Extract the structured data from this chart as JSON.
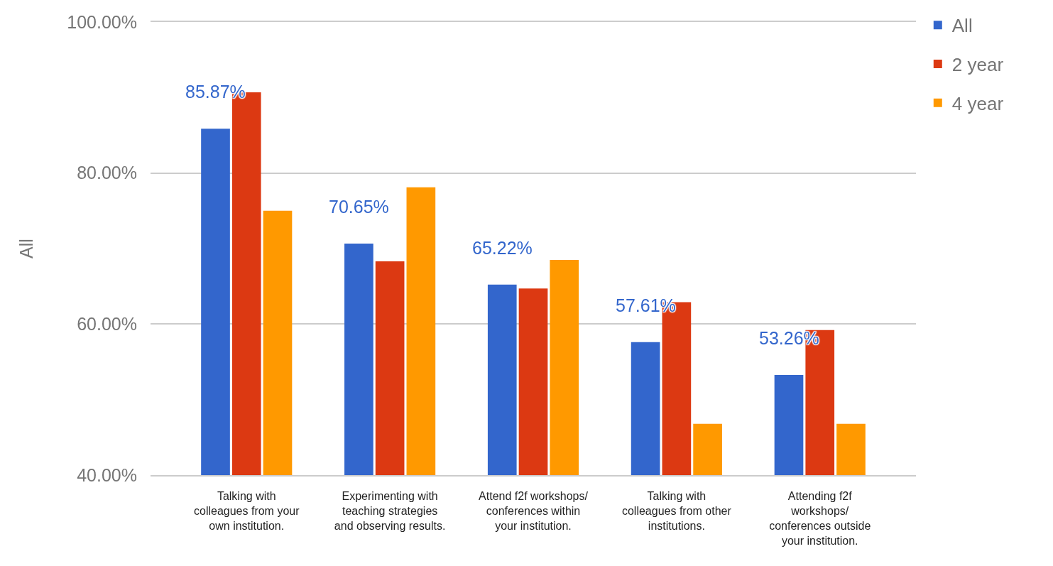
{
  "chart_data": {
    "type": "bar",
    "ylabel": "All",
    "categories": [
      "Talking with\ncolleagues from your\nown institution.",
      "Experimenting with\nteaching strategies\nand observing results.",
      "Attend f2f workshops/\nconferences within\nyour institution.",
      "Talking with\ncolleagues from other\ninstitutions.",
      "Attending f2f\nworkshops/\nconferences outside\nyour institution."
    ],
    "series": [
      {
        "name": "All",
        "color": "#3366cc",
        "values": [
          85.87,
          70.65,
          65.22,
          57.61,
          53.26
        ],
        "value_labels": [
          "85.87%",
          "70.65%",
          "65.22%",
          "57.61%",
          "53.26%"
        ]
      },
      {
        "name": "2 year",
        "color": "#dc3912",
        "values": [
          90.7,
          68.3,
          64.7,
          62.9,
          59.2
        ]
      },
      {
        "name": "4 year",
        "color": "#ff9900",
        "values": [
          75.0,
          78.1,
          68.5,
          46.8,
          46.8
        ]
      }
    ],
    "ylim": [
      40,
      100
    ],
    "yticks": [
      {
        "value": 40,
        "label": "40.00%"
      },
      {
        "value": 60,
        "label": "60.00%"
      },
      {
        "value": 80,
        "label": "80.00%"
      },
      {
        "value": 100,
        "label": "100.00%"
      }
    ],
    "grid": "y",
    "legend": "top right"
  }
}
